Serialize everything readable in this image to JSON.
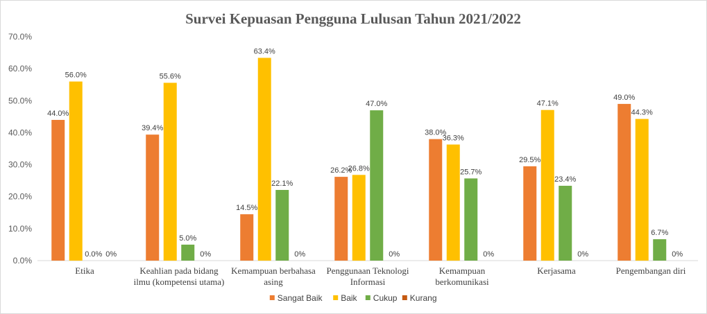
{
  "chart_data": {
    "type": "bar",
    "title": "Survei Kepuasan Pengguna Lulusan Tahun 2021/2022",
    "xlabel": "",
    "ylabel": "",
    "ylim": [
      0,
      70
    ],
    "y_ticks": [
      "0.0%",
      "10.0%",
      "20.0%",
      "30.0%",
      "40.0%",
      "50.0%",
      "60.0%",
      "70.0%"
    ],
    "grid": false,
    "legend_position": "bottom",
    "categories": [
      [
        "Etika"
      ],
      [
        "Keahlian pada bidang",
        "ilmu (kompetensi utama)"
      ],
      [
        "Kemampuan berbahasa",
        "asing"
      ],
      [
        "Penggunaan Teknologi",
        "Informasi"
      ],
      [
        "Kemampuan",
        "berkomunikasi"
      ],
      [
        "Kerjasama"
      ],
      [
        "Pengembangan diri"
      ]
    ],
    "series": [
      {
        "name": "Sangat Baik",
        "color": "#ed7d31",
        "values": [
          44.0,
          39.4,
          14.5,
          26.2,
          38.0,
          29.5,
          49.0
        ],
        "labels": [
          "44.0%",
          "39.4%",
          "14.5%",
          "26.2%",
          "38.0%",
          "29.5%",
          "49.0%"
        ]
      },
      {
        "name": "Baik",
        "color": "#ffc000",
        "values": [
          56.0,
          55.6,
          63.4,
          26.8,
          36.3,
          47.1,
          44.3
        ],
        "labels": [
          "56.0%",
          "55.6%",
          "63.4%",
          "26.8%",
          "36.3%",
          "47.1%",
          "44.3%"
        ]
      },
      {
        "name": "Cukup",
        "color": "#70ad47",
        "values": [
          0.0,
          5.0,
          22.1,
          47.0,
          25.7,
          23.4,
          6.7
        ],
        "labels": [
          "0.0%",
          "5.0%",
          "22.1%",
          "47.0%",
          "25.7%",
          "23.4%",
          "6.7%"
        ]
      },
      {
        "name": "Kurang",
        "color": "#c55a11",
        "values": [
          0,
          0,
          0,
          0,
          0,
          0,
          0
        ],
        "labels": [
          "0%",
          "0%",
          "0%",
          "0%",
          "0%",
          "0%",
          "0%"
        ]
      }
    ]
  }
}
